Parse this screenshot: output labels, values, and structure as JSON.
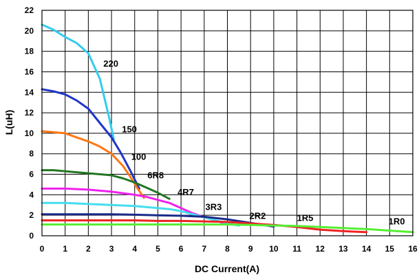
{
  "chart_data": {
    "type": "line",
    "xlabel": "DC Current(A)",
    "ylabel": "L(uH)",
    "xlim": [
      0,
      16
    ],
    "ylim": [
      0,
      22
    ],
    "xticks": [
      0,
      1,
      2,
      3,
      4,
      5,
      6,
      7,
      8,
      9,
      10,
      11,
      12,
      13,
      14,
      15,
      16
    ],
    "yticks": [
      0,
      2,
      4,
      6,
      8,
      10,
      12,
      14,
      16,
      18,
      20,
      22
    ],
    "grid": true,
    "series": [
      {
        "name": "220",
        "color": "#33ccee",
        "points": [
          [
            0,
            20.6
          ],
          [
            0.5,
            20.1
          ],
          [
            1,
            19.4
          ],
          [
            1.5,
            18.8
          ],
          [
            2,
            17.8
          ],
          [
            2.5,
            15.3
          ],
          [
            2.9,
            11.5
          ],
          [
            3.1,
            9.4
          ]
        ],
        "label_at": [
          2.65,
          16.5
        ]
      },
      {
        "name": "150",
        "color": "#1f35c8",
        "points": [
          [
            0,
            14.3
          ],
          [
            0.5,
            14.1
          ],
          [
            1,
            13.8
          ],
          [
            1.5,
            13.2
          ],
          [
            2,
            12.4
          ],
          [
            2.5,
            11.0
          ],
          [
            3,
            9.6
          ],
          [
            3.4,
            8.1
          ],
          [
            3.8,
            6.4
          ],
          [
            4.2,
            4.6
          ]
        ],
        "label_at": [
          3.45,
          10.1
        ]
      },
      {
        "name": "100",
        "color": "#ff7711",
        "points": [
          [
            0,
            10.2
          ],
          [
            0.5,
            10.1
          ],
          [
            1,
            10.0
          ],
          [
            1.5,
            9.6
          ],
          [
            2,
            9.2
          ],
          [
            2.5,
            8.7
          ],
          [
            3,
            8.0
          ],
          [
            3.5,
            6.8
          ],
          [
            3.8,
            5.8
          ],
          [
            4.1,
            4.7
          ],
          [
            4.4,
            3.7
          ]
        ],
        "label_at": [
          3.85,
          7.4
        ]
      },
      {
        "name": "6R8",
        "color": "#227722",
        "points": [
          [
            0,
            6.4
          ],
          [
            0.5,
            6.4
          ],
          [
            1,
            6.3
          ],
          [
            1.5,
            6.2
          ],
          [
            2,
            6.1
          ],
          [
            2.5,
            6.0
          ],
          [
            3,
            5.9
          ],
          [
            3.5,
            5.6
          ],
          [
            4,
            5.2
          ],
          [
            4.5,
            4.7
          ],
          [
            5,
            4.2
          ],
          [
            5.5,
            3.6
          ]
        ],
        "label_at": [
          4.55,
          5.6
        ]
      },
      {
        "name": "4R7",
        "color": "#ee22ee",
        "points": [
          [
            0,
            4.6
          ],
          [
            1,
            4.6
          ],
          [
            2,
            4.5
          ],
          [
            3,
            4.3
          ],
          [
            3.5,
            4.15
          ],
          [
            4,
            4.0
          ],
          [
            4.5,
            3.8
          ],
          [
            5,
            3.5
          ],
          [
            5.5,
            3.2
          ],
          [
            6,
            2.7
          ],
          [
            6.5,
            2.2
          ],
          [
            7,
            1.8
          ],
          [
            7.5,
            1.5
          ],
          [
            8,
            1.1
          ]
        ],
        "label_at": [
          5.85,
          3.95
        ]
      },
      {
        "name": "3R3",
        "color": "#44ddee",
        "points": [
          [
            0,
            3.2
          ],
          [
            1,
            3.2
          ],
          [
            2,
            3.1
          ],
          [
            3,
            3.0
          ],
          [
            4,
            2.9
          ],
          [
            5,
            2.7
          ],
          [
            5.5,
            2.6
          ],
          [
            6,
            2.4
          ],
          [
            6.5,
            2.1
          ],
          [
            7,
            1.8
          ],
          [
            7.5,
            1.5
          ],
          [
            8,
            1.2
          ],
          [
            8.5,
            1.0
          ]
        ],
        "label_at": [
          7.05,
          2.5
        ]
      },
      {
        "name": "2R2",
        "color": "#1a2a88",
        "points": [
          [
            0,
            2.1
          ],
          [
            1,
            2.1
          ],
          [
            2,
            2.1
          ],
          [
            3,
            2.1
          ],
          [
            4,
            2.05
          ],
          [
            5,
            2.0
          ],
          [
            6,
            1.95
          ],
          [
            7,
            1.85
          ],
          [
            8,
            1.6
          ],
          [
            9,
            1.25
          ],
          [
            10,
            0.9
          ]
        ],
        "label_at": [
          8.95,
          1.65
        ]
      },
      {
        "name": "1R5",
        "color": "#ee2222",
        "points": [
          [
            0,
            1.5
          ],
          [
            1,
            1.5
          ],
          [
            2,
            1.5
          ],
          [
            3,
            1.5
          ],
          [
            4,
            1.5
          ],
          [
            5,
            1.45
          ],
          [
            6,
            1.45
          ],
          [
            7,
            1.4
          ],
          [
            8,
            1.35
          ],
          [
            9,
            1.2
          ],
          [
            10,
            1.05
          ],
          [
            11,
            0.85
          ],
          [
            12,
            0.6
          ],
          [
            13,
            0.45
          ],
          [
            14,
            0.35
          ]
        ],
        "label_at": [
          11.0,
          1.45
        ]
      },
      {
        "name": "1R0",
        "color": "#55ee33",
        "points": [
          [
            0,
            1.1
          ],
          [
            1,
            1.1
          ],
          [
            2,
            1.1
          ],
          [
            3,
            1.1
          ],
          [
            4,
            1.1
          ],
          [
            5,
            1.1
          ],
          [
            6,
            1.1
          ],
          [
            7,
            1.1
          ],
          [
            8,
            1.1
          ],
          [
            9,
            1.05
          ],
          [
            10,
            1.0
          ],
          [
            11,
            0.95
          ],
          [
            12,
            0.85
          ],
          [
            13,
            0.75
          ],
          [
            14,
            0.65
          ],
          [
            15,
            0.5
          ],
          [
            16,
            0.35
          ]
        ],
        "label_at": [
          14.95,
          1.1
        ]
      }
    ]
  }
}
